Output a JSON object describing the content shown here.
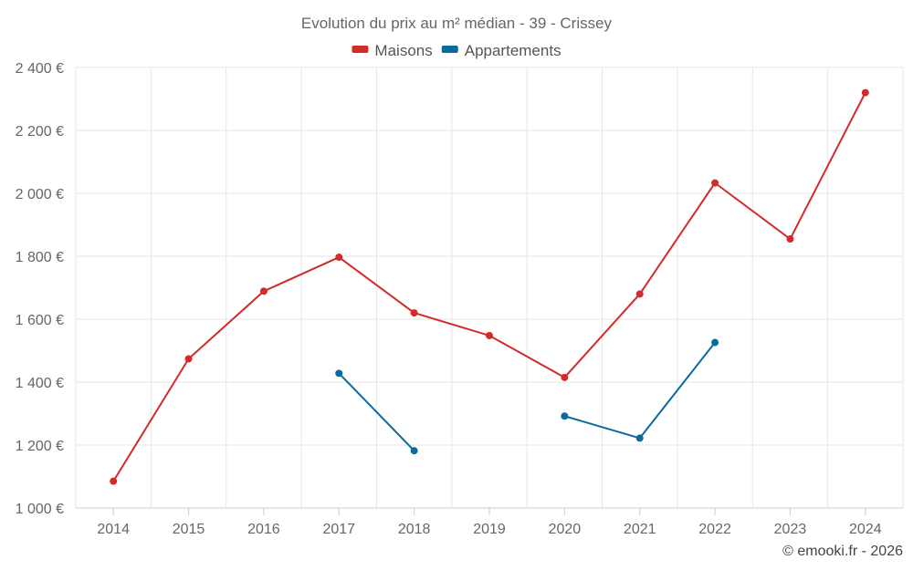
{
  "chart_data": {
    "type": "line",
    "title": "Evolution du prix au m² médian - 39 - Crissey",
    "categories": [
      "2014",
      "2015",
      "2016",
      "2017",
      "2018",
      "2019",
      "2020",
      "2021",
      "2022",
      "2023",
      "2024"
    ],
    "series": [
      {
        "name": "Maisons",
        "color": "#d32a2a",
        "values": [
          1085,
          1474,
          1689,
          1797,
          1620,
          1548,
          1415,
          1680,
          2033,
          1855,
          2320
        ]
      },
      {
        "name": "Appartements",
        "color": "#0b6a9e",
        "values": [
          null,
          null,
          null,
          1428,
          1182,
          null,
          1292,
          1222,
          1526,
          null,
          null
        ]
      }
    ],
    "ylim": [
      1000,
      2400
    ],
    "y_ticks": [
      1000,
      1200,
      1400,
      1600,
      1800,
      2000,
      2200,
      2400
    ],
    "y_tick_labels": [
      "1 000 €",
      "1 200 €",
      "1 400 €",
      "1 600 €",
      "1 800 €",
      "2 000 €",
      "2 200 €",
      "2 400 €"
    ],
    "xlabel": "",
    "ylabel": "",
    "grid": true,
    "legend_position": "top-center"
  },
  "credit": "© emooki.fr - 2026"
}
